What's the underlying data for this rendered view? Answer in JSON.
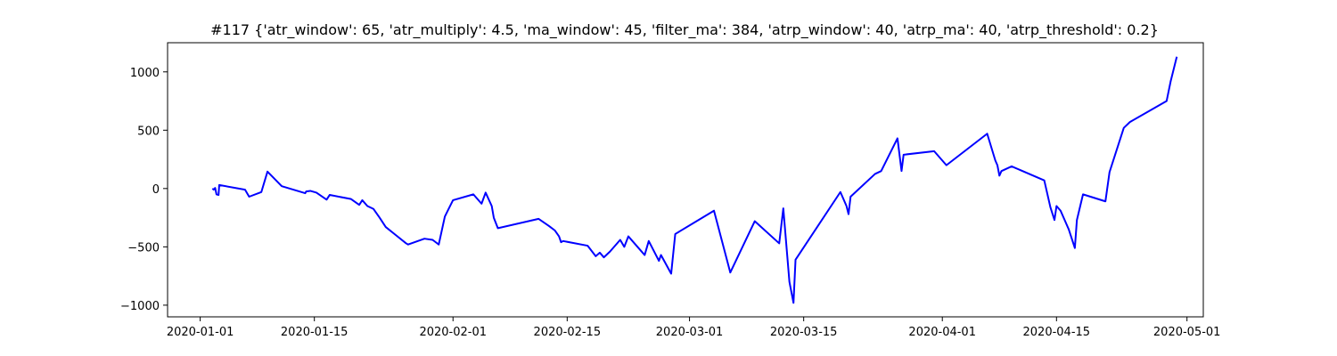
{
  "chart_data": {
    "type": "line",
    "title": "#117 {'atr_window': 65, 'atr_multiply': 4.5, 'ma_window': 45, 'filter_ma': 384, 'atrp_window': 40, 'atrp_ma': 40, 'atrp_threshold': 0.2}",
    "xlabel": "",
    "ylabel": "",
    "x_type": "date",
    "xlim": [
      "2019-12-28",
      "2020-05-03"
    ],
    "ylim": [
      -1100,
      1250
    ],
    "x_ticks": [
      {
        "value": "2020-01-01",
        "label": "2020-01-01"
      },
      {
        "value": "2020-01-15",
        "label": "2020-01-15"
      },
      {
        "value": "2020-02-01",
        "label": "2020-02-01"
      },
      {
        "value": "2020-02-15",
        "label": "2020-02-15"
      },
      {
        "value": "2020-03-01",
        "label": "2020-03-01"
      },
      {
        "value": "2020-03-15",
        "label": "2020-03-15"
      },
      {
        "value": "2020-04-01",
        "label": "2020-04-01"
      },
      {
        "value": "2020-04-15",
        "label": "2020-04-15"
      },
      {
        "value": "2020-05-01",
        "label": "2020-05-01"
      }
    ],
    "y_ticks": [
      {
        "value": -1000,
        "label": "−1000"
      },
      {
        "value": -500,
        "label": "−500"
      },
      {
        "value": 0,
        "label": "0"
      },
      {
        "value": 500,
        "label": "500"
      },
      {
        "value": 1000,
        "label": "1000"
      }
    ],
    "grid": false,
    "legend": "none",
    "color": "#0000ff",
    "series": [
      {
        "points": [
          [
            "2020-01-02 12:00",
            0
          ],
          [
            "2020-01-02 16:00",
            -10
          ],
          [
            "2020-01-02 20:00",
            5
          ],
          [
            "2020-01-03 00:00",
            -50
          ],
          [
            "2020-01-03 06:00",
            -55
          ],
          [
            "2020-01-03 08:00",
            30
          ],
          [
            "2020-01-06 12:00",
            -10
          ],
          [
            "2020-01-07 00:00",
            -70
          ],
          [
            "2020-01-08 12:00",
            -30
          ],
          [
            "2020-01-09 06:00",
            145
          ],
          [
            "2020-01-11 00:00",
            20
          ],
          [
            "2020-01-13 21:00",
            -40
          ],
          [
            "2020-01-14 00:00",
            -25
          ],
          [
            "2020-01-14 12:00",
            -20
          ],
          [
            "2020-01-15 06:00",
            -35
          ],
          [
            "2020-01-16 12:00",
            -95
          ],
          [
            "2020-01-16 21:00",
            -55
          ],
          [
            "2020-01-19 12:00",
            -90
          ],
          [
            "2020-01-20 12:00",
            -140
          ],
          [
            "2020-01-20 21:00",
            -100
          ],
          [
            "2020-01-21 12:00",
            -150
          ],
          [
            "2020-01-22 06:00",
            -175
          ],
          [
            "2020-01-23 00:00",
            -250
          ],
          [
            "2020-01-23 18:00",
            -330
          ],
          [
            "2020-01-25 00:00",
            -400
          ],
          [
            "2020-01-26 06:00",
            -470
          ],
          [
            "2020-01-26 12:00",
            -480
          ],
          [
            "2020-01-28 12:00",
            -430
          ],
          [
            "2020-01-29 12:00",
            -440
          ],
          [
            "2020-01-30 06:00",
            -480
          ],
          [
            "2020-01-31 00:00",
            -240
          ],
          [
            "2020-01-31 12:00",
            -170
          ],
          [
            "2020-02-01 00:00",
            -100
          ],
          [
            "2020-02-03 12:00",
            -50
          ],
          [
            "2020-02-04 12:00",
            -130
          ],
          [
            "2020-02-05 00:00",
            -35
          ],
          [
            "2020-02-05 18:00",
            -150
          ],
          [
            "2020-02-06 00:00",
            -250
          ],
          [
            "2020-02-06 12:00",
            -340
          ],
          [
            "2020-02-11 12:00",
            -260
          ],
          [
            "2020-02-12 18:00",
            -320
          ],
          [
            "2020-02-13 12:00",
            -360
          ],
          [
            "2020-02-14 00:00",
            -410
          ],
          [
            "2020-02-14 06:00",
            -460
          ],
          [
            "2020-02-14 12:00",
            -450
          ],
          [
            "2020-02-17 12:00",
            -490
          ],
          [
            "2020-02-18 12:00",
            -580
          ],
          [
            "2020-02-19 00:00",
            -550
          ],
          [
            "2020-02-19 12:00",
            -590
          ],
          [
            "2020-02-20 06:00",
            -540
          ],
          [
            "2020-02-21 12:00",
            -440
          ],
          [
            "2020-02-22 00:00",
            -500
          ],
          [
            "2020-02-22 12:00",
            -410
          ],
          [
            "2020-02-24 12:00",
            -570
          ],
          [
            "2020-02-25 00:00",
            -450
          ],
          [
            "2020-02-26 06:00",
            -620
          ],
          [
            "2020-02-26 12:00",
            -570
          ],
          [
            "2020-02-27 18:00",
            -730
          ],
          [
            "2020-02-28 06:00",
            -390
          ],
          [
            "2020-03-04 00:00",
            -190
          ],
          [
            "2020-03-06 00:00",
            -720
          ],
          [
            "2020-03-09 00:00",
            -280
          ],
          [
            "2020-03-12 00:00",
            -470
          ],
          [
            "2020-03-12 12:00",
            -170
          ],
          [
            "2020-03-13 06:00",
            -800
          ],
          [
            "2020-03-13 18:00",
            -980
          ],
          [
            "2020-03-14 00:00",
            -610
          ],
          [
            "2020-03-19 12:00",
            -30
          ],
          [
            "2020-03-20 06:00",
            -150
          ],
          [
            "2020-03-20 12:00",
            -220
          ],
          [
            "2020-03-20 18:00",
            -70
          ],
          [
            "2020-03-23 18:00",
            125
          ],
          [
            "2020-03-24 12:00",
            150
          ],
          [
            "2020-03-26 12:00",
            430
          ],
          [
            "2020-03-27 00:00",
            150
          ],
          [
            "2020-03-27 06:00",
            290
          ],
          [
            "2020-03-31 00:00",
            320
          ],
          [
            "2020-04-01 12:00",
            200
          ],
          [
            "2020-04-06 12:00",
            470
          ],
          [
            "2020-04-07 12:00",
            240
          ],
          [
            "2020-04-07 18:00",
            200
          ],
          [
            "2020-04-08 00:00",
            110
          ],
          [
            "2020-04-08 06:00",
            150
          ],
          [
            "2020-04-09 12:00",
            190
          ],
          [
            "2020-04-13 12:00",
            70
          ],
          [
            "2020-04-14 06:00",
            -160
          ],
          [
            "2020-04-14 18:00",
            -270
          ],
          [
            "2020-04-15 00:00",
            -150
          ],
          [
            "2020-04-15 12:00",
            -190
          ],
          [
            "2020-04-16 12:00",
            -350
          ],
          [
            "2020-04-17 06:00",
            -510
          ],
          [
            "2020-04-17 12:00",
            -270
          ],
          [
            "2020-04-18 06:00",
            -50
          ],
          [
            "2020-04-21 00:00",
            -110
          ],
          [
            "2020-04-21 12:00",
            140
          ],
          [
            "2020-04-23 06:00",
            520
          ],
          [
            "2020-04-24 00:00",
            570
          ],
          [
            "2020-04-28 12:00",
            750
          ],
          [
            "2020-04-29 00:00",
            920
          ],
          [
            "2020-04-29 18:00",
            1130
          ]
        ]
      }
    ]
  }
}
